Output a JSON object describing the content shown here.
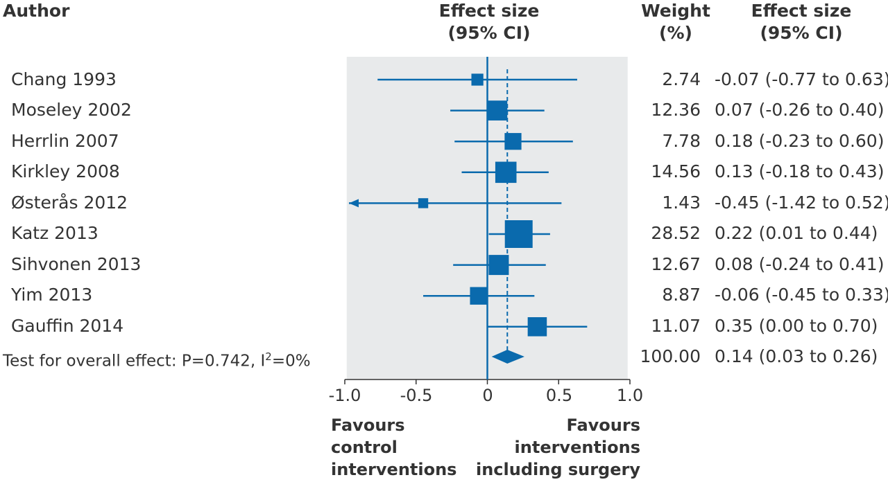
{
  "headers": {
    "author": "Author",
    "effect_size_line1": "Effect size",
    "effect_size_line2": "(95% CI)",
    "weight_line1": "Weight",
    "weight_line2": "(%)",
    "es_col_line1": "Effect size",
    "es_col_line2": "(95% CI)"
  },
  "studies": [
    {
      "author": "Chang 1993",
      "weight": "2.74",
      "es_text": "-0.07 (-0.77 to 0.63)"
    },
    {
      "author": "Moseley 2002",
      "weight": "12.36",
      "es_text": "0.07 (-0.26 to 0.40)"
    },
    {
      "author": "Herrlin 2007",
      "weight": "7.78",
      "es_text": "0.18 (-0.23 to 0.60)"
    },
    {
      "author": "Kirkley 2008",
      "weight": "14.56",
      "es_text": "0.13 (-0.18 to 0.43)"
    },
    {
      "author": "Østerås 2012",
      "weight": "1.43",
      "es_text": "-0.45 (-1.42 to 0.52)"
    },
    {
      "author": "Katz 2013",
      "weight": "28.52",
      "es_text": "0.22 (0.01 to 0.44)"
    },
    {
      "author": "Sihvonen 2013",
      "weight": "12.67",
      "es_text": "0.08 (-0.24 to 0.41)"
    },
    {
      "author": "Yim 2013",
      "weight": "8.87",
      "es_text": "-0.06 (-0.45 to 0.33)"
    },
    {
      "author": "Gauffin 2014",
      "weight": "11.07",
      "es_text": "0.35 (0.00 to 0.70)"
    }
  ],
  "overall": {
    "label_prefix": "Test for overall effect: P=0.742, I",
    "label_sup": "2",
    "label_suffix": "=0%",
    "weight": "100.00",
    "es_text": "0.14 (0.03 to 0.26)"
  },
  "x_tick_labels": [
    "-1.0",
    "-0.5",
    "0",
    "0.5",
    "1.0"
  ],
  "favours": {
    "left_line1": "Favours",
    "left_line2": "control",
    "left_line3": "interventions",
    "right_line1": "Favours",
    "right_line2": "interventions",
    "right_line3": "including surgery"
  },
  "colors": {
    "marker": "#0a6aad",
    "plot_background": "#e8eaeb",
    "text": "#333333"
  },
  "chart_data": {
    "type": "forest",
    "xlim": [
      -1.0,
      1.0
    ],
    "x_ticks": [
      -1.0,
      -0.5,
      0,
      0.5,
      1.0
    ],
    "null_line": 0,
    "studies": [
      {
        "label": "Chang 1993",
        "estimate": -0.07,
        "lower": -0.77,
        "upper": 0.63,
        "weight": 2.74
      },
      {
        "label": "Moseley 2002",
        "estimate": 0.07,
        "lower": -0.26,
        "upper": 0.4,
        "weight": 12.36
      },
      {
        "label": "Herrlin 2007",
        "estimate": 0.18,
        "lower": -0.23,
        "upper": 0.6,
        "weight": 7.78
      },
      {
        "label": "Kirkley 2008",
        "estimate": 0.13,
        "lower": -0.18,
        "upper": 0.43,
        "weight": 14.56
      },
      {
        "label": "Østerås 2012",
        "estimate": -0.45,
        "lower": -1.42,
        "upper": 0.52,
        "weight": 1.43
      },
      {
        "label": "Katz 2013",
        "estimate": 0.22,
        "lower": 0.01,
        "upper": 0.44,
        "weight": 28.52
      },
      {
        "label": "Sihvonen 2013",
        "estimate": 0.08,
        "lower": -0.24,
        "upper": 0.41,
        "weight": 12.67
      },
      {
        "label": "Yim 2013",
        "estimate": -0.06,
        "lower": -0.45,
        "upper": 0.33,
        "weight": 8.87
      },
      {
        "label": "Gauffin 2014",
        "estimate": 0.35,
        "lower": 0.0,
        "upper": 0.7,
        "weight": 11.07
      }
    ],
    "overall": {
      "estimate": 0.14,
      "lower": 0.03,
      "upper": 0.26,
      "weight": 100.0
    }
  }
}
